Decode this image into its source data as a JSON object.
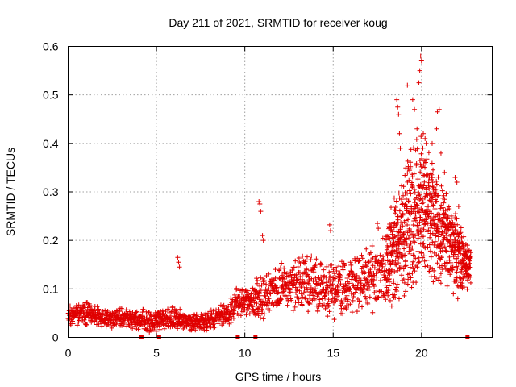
{
  "chart_data": {
    "type": "scatter",
    "title": "Day 211 of 2021, SRMTID for receiver koug",
    "xlabel": "GPS time / hours",
    "ylabel": "SRMTID / TECUs",
    "xlim": [
      0,
      24
    ],
    "ylim": [
      0,
      0.6
    ],
    "x_ticks": [
      0,
      5,
      10,
      15,
      20
    ],
    "x_tick_labels": [
      "0",
      "5",
      "10",
      "15",
      "20"
    ],
    "y_ticks": [
      0,
      0.1,
      0.2,
      0.3,
      0.4,
      0.5,
      0.6
    ],
    "y_tick_labels": [
      "0",
      "0.1",
      "0.2",
      "0.3",
      "0.4",
      "0.5",
      "0.6"
    ],
    "grid": true,
    "marker": "plus",
    "color": "#e00000",
    "gap_markers_x": [
      4.15,
      5.15,
      9.6,
      10.6,
      22.6
    ],
    "envelope": {
      "x": [
        0,
        1,
        2,
        3,
        4,
        5,
        6,
        7,
        8,
        9,
        9.5,
        10,
        10.5,
        11,
        12,
        13,
        14,
        15,
        16,
        17,
        17.5,
        18,
        18.5,
        19,
        19.5,
        20,
        20.5,
        21,
        21.5,
        22,
        22.5,
        22.8
      ],
      "base": [
        0.045,
        0.05,
        0.04,
        0.04,
        0.035,
        0.035,
        0.04,
        0.03,
        0.035,
        0.05,
        0.075,
        0.07,
        0.08,
        0.085,
        0.1,
        0.115,
        0.11,
        0.1,
        0.105,
        0.125,
        0.13,
        0.14,
        0.18,
        0.22,
        0.26,
        0.28,
        0.25,
        0.22,
        0.2,
        0.18,
        0.15,
        0.14
      ],
      "spread": [
        0.018,
        0.02,
        0.016,
        0.016,
        0.018,
        0.018,
        0.02,
        0.015,
        0.015,
        0.02,
        0.025,
        0.022,
        0.03,
        0.035,
        0.04,
        0.045,
        0.05,
        0.05,
        0.045,
        0.05,
        0.06,
        0.07,
        0.09,
        0.11,
        0.12,
        0.13,
        0.11,
        0.09,
        0.07,
        0.06,
        0.04,
        0.035
      ]
    },
    "highlight_points": [
      {
        "x": 6.2,
        "y": 0.165
      },
      {
        "x": 6.25,
        "y": 0.155
      },
      {
        "x": 6.3,
        "y": 0.145
      },
      {
        "x": 10.8,
        "y": 0.28
      },
      {
        "x": 10.85,
        "y": 0.275
      },
      {
        "x": 10.9,
        "y": 0.26
      },
      {
        "x": 11.0,
        "y": 0.21
      },
      {
        "x": 11.05,
        "y": 0.2
      },
      {
        "x": 14.8,
        "y": 0.232
      },
      {
        "x": 14.85,
        "y": 0.22
      },
      {
        "x": 17.5,
        "y": 0.235
      },
      {
        "x": 17.55,
        "y": 0.225
      },
      {
        "x": 18.6,
        "y": 0.49
      },
      {
        "x": 18.65,
        "y": 0.475
      },
      {
        "x": 18.7,
        "y": 0.46
      },
      {
        "x": 18.75,
        "y": 0.42
      },
      {
        "x": 18.8,
        "y": 0.39
      },
      {
        "x": 19.2,
        "y": 0.52
      },
      {
        "x": 19.5,
        "y": 0.49
      },
      {
        "x": 19.6,
        "y": 0.47
      },
      {
        "x": 19.85,
        "y": 0.525
      },
      {
        "x": 19.9,
        "y": 0.55
      },
      {
        "x": 19.95,
        "y": 0.58
      },
      {
        "x": 20.0,
        "y": 0.57
      },
      {
        "x": 20.1,
        "y": 0.42
      },
      {
        "x": 20.2,
        "y": 0.41
      },
      {
        "x": 20.6,
        "y": 0.4
      },
      {
        "x": 20.9,
        "y": 0.465
      },
      {
        "x": 21.0,
        "y": 0.47
      },
      {
        "x": 20.85,
        "y": 0.43
      },
      {
        "x": 21.1,
        "y": 0.38
      },
      {
        "x": 21.3,
        "y": 0.34
      },
      {
        "x": 21.9,
        "y": 0.33
      },
      {
        "x": 22.0,
        "y": 0.32
      },
      {
        "x": 22.1,
        "y": 0.27
      },
      {
        "x": 22.05,
        "y": 0.08
      },
      {
        "x": 21.8,
        "y": 0.09
      },
      {
        "x": 22.6,
        "y": 0.19
      },
      {
        "x": 22.7,
        "y": 0.18
      },
      {
        "x": 19.1,
        "y": 0.095
      }
    ]
  }
}
